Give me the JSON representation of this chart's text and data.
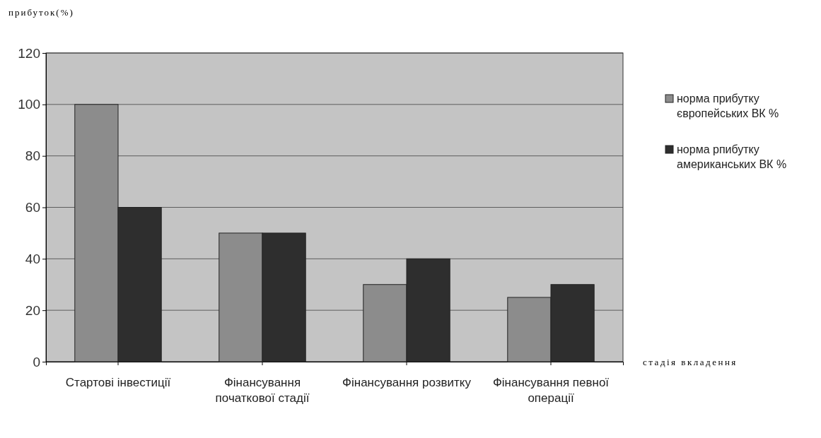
{
  "chart_data": {
    "type": "bar",
    "ylabel": "прибуток(%)",
    "xlabel": "стадія вкладення",
    "categories": [
      "Стартові інвестиції",
      "Фінансування початкової стадії",
      "Фінансування розвитку",
      "Фінансування певної операції"
    ],
    "series": [
      {
        "name": "норма прибутку європейських ВК %",
        "color": "#8c8c8c",
        "values": [
          100,
          50,
          30,
          25
        ]
      },
      {
        "name": "норма рпибутку американських ВК %",
        "color": "#2e2e2e",
        "values": [
          60,
          50,
          40,
          30
        ]
      }
    ],
    "ylim": [
      0,
      120
    ],
    "yticks": [
      0,
      20,
      40,
      60,
      80,
      100,
      120
    ],
    "grid": "y",
    "legend": "right"
  }
}
